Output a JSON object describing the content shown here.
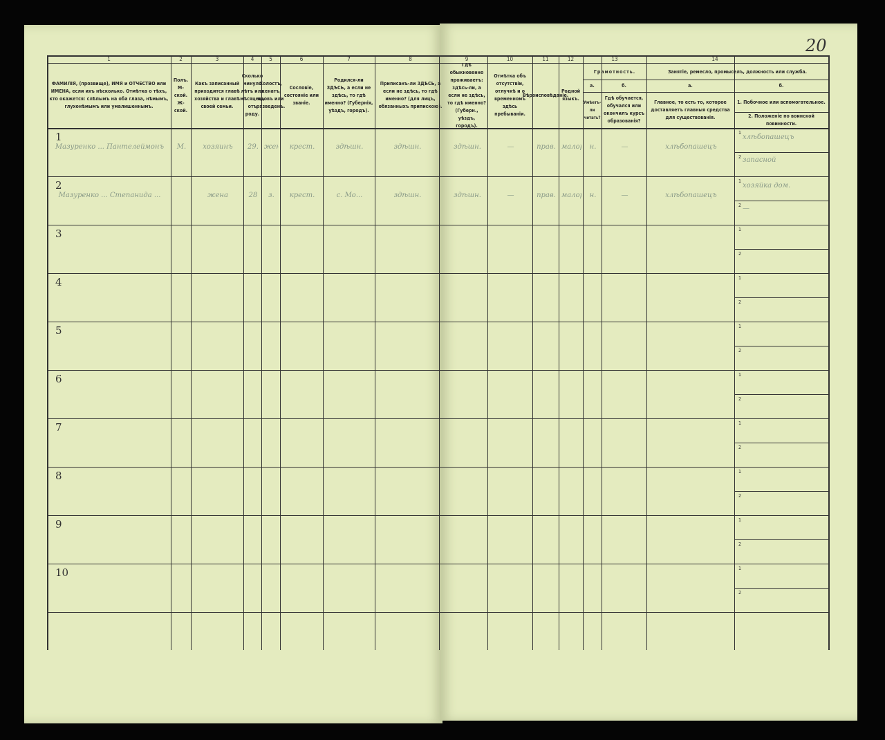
{
  "page_number": "20",
  "columns": [
    {
      "no": "1",
      "text": "ФАМИЛІЯ, (прозвище), ИМЯ и ОТЧЕСТВО или ИМЕНА, если ихъ нѣсколько. Отмѣтка о тѣхъ, кто окажется: слѣпымъ на оба глаза, нѣмымъ, глухонѣмымъ или умалишеннымъ."
    },
    {
      "no": "2",
      "text": "Полъ. М-ской. Ж-ской."
    },
    {
      "no": "3",
      "text": "Какъ записанный приходится главѣ хозяйства и главѣ своей семьи."
    },
    {
      "no": "4",
      "text": "Сколько минуло лѣтъ или мѣсяцевъ отъ роду."
    },
    {
      "no": "5",
      "text": "Холостъ, женатъ, вдовъ или разведенъ."
    },
    {
      "no": "6",
      "text": "Сословіе, состояніе или званіе."
    },
    {
      "no": "7",
      "text": "Родился-ли ЗДѢСЬ, а если не здѣсь, то гдѣ именно? (Губернія, уѣздъ, городъ)."
    },
    {
      "no": "8",
      "text": "Приписанъ-ли ЗДѢСЬ, а если не здѣсь, то гдѣ именно? (для лицъ, обязанныхъ припискою)."
    },
    {
      "no": "9",
      "text": "Гдѣ обыкновенно проживаетъ: здѣсь-ли, а если не здѣсь, то гдѣ именно? (Губерн., уѣздъ, городъ)."
    },
    {
      "no": "10",
      "text": "Отмѣтка объ отсутствіи, отлучкѣ и о временномъ здѣсь пребываніи."
    },
    {
      "no": "11",
      "text": "Вѣроисповѣданіе."
    },
    {
      "no": "12",
      "text": "Родной языкъ."
    },
    {
      "no": "13",
      "text": "Грамотность.",
      "a": "а.",
      "a_text": "Умѣетъ-ли читать?",
      "b": "б.",
      "b_text": "Гдѣ обучается, обучался или окончилъ курсъ образованія?"
    },
    {
      "no": "14",
      "text": "Занятіе, ремесло, промыселъ, должность или служба.",
      "a": "а.",
      "a_text": "Главное, то есть то, которое доставляетъ главныя средства для существованія.",
      "b": "б.",
      "b1": "1. Побочное или вспомогательное.",
      "b2": "2. Положеніе по воинской повинности."
    }
  ],
  "rows": [
    {
      "n": "1",
      "c": [
        "Мазуренко ... Пантелеймонъ",
        "М.",
        "хозяинъ",
        "29.",
        "жен.",
        "крест.",
        "здѣшн.",
        "здѣшн.",
        "здѣшн.",
        "—",
        "прав.",
        "малор.",
        "н.",
        "—",
        "хлѣбопашецъ"
      ],
      "b1": "хлѣбопашецъ",
      "b2": "запасной"
    },
    {
      "n": "2",
      "c": [
        "Мазуренко ... Степанида ...",
        "",
        "жена",
        "28",
        "з.",
        "крест.",
        "с. Мо...",
        "здѣшн.",
        "здѣшн.",
        "—",
        "прав.",
        "малор.",
        "н.",
        "—",
        "хлѣбопашецъ"
      ],
      "b1": "хозяйка дом.",
      "b2": "—"
    },
    {
      "n": "3",
      "c": []
    },
    {
      "n": "4",
      "c": []
    },
    {
      "n": "5",
      "c": []
    },
    {
      "n": "6",
      "c": []
    },
    {
      "n": "7",
      "c": []
    },
    {
      "n": "8",
      "c": []
    },
    {
      "n": "9",
      "c": []
    },
    {
      "n": "10",
      "c": []
    }
  ],
  "sub_labels": {
    "one": "1",
    "two": "2"
  },
  "colors": {
    "paper": "#e4ebbf",
    "ink": "#2a2a2a",
    "background": "#050505"
  }
}
